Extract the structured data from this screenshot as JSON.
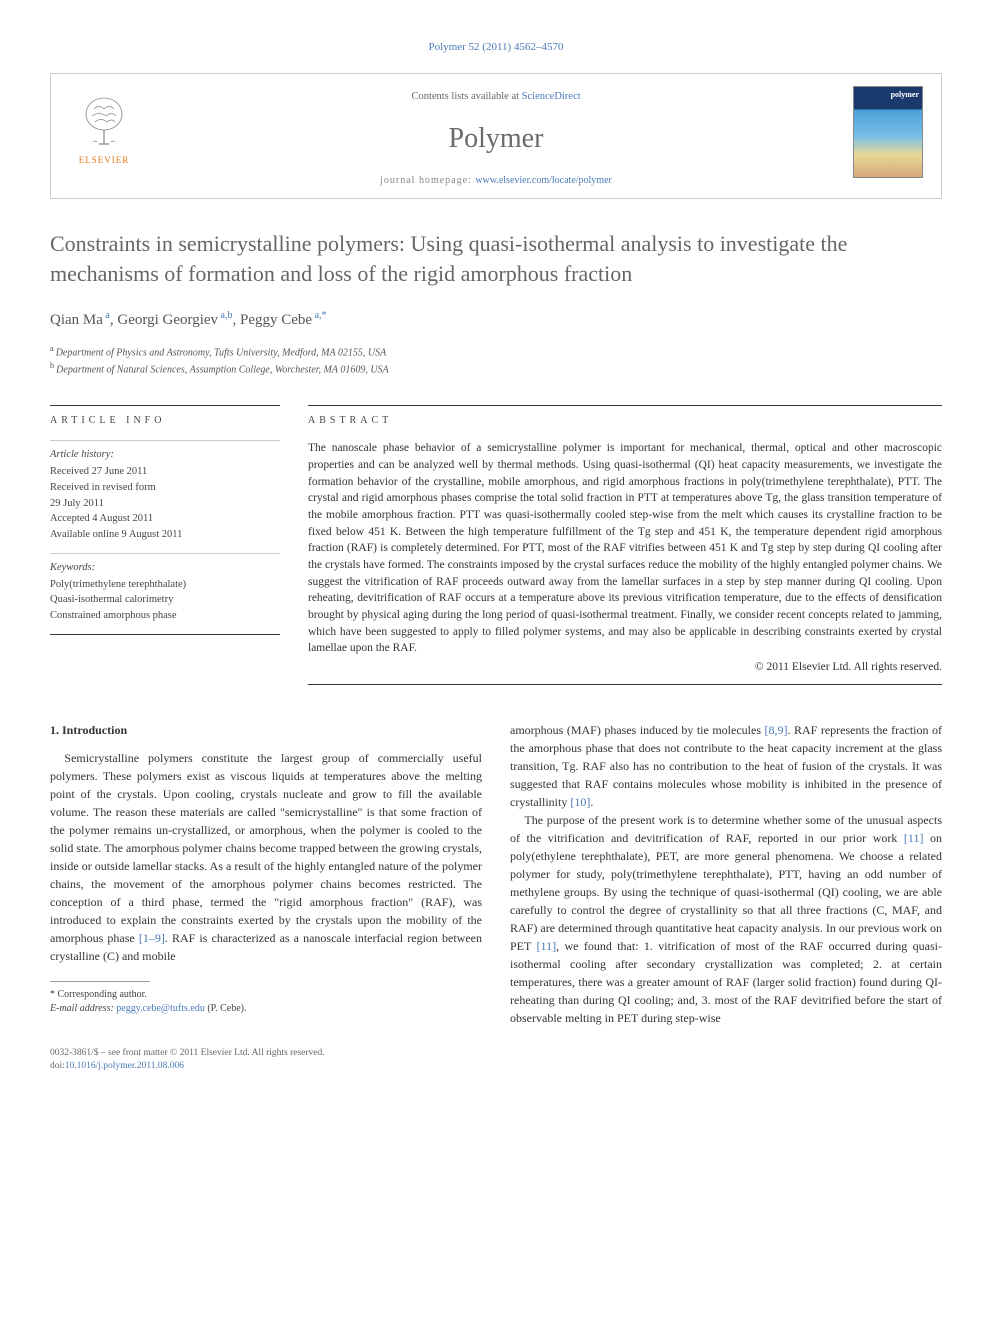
{
  "header": {
    "citation_prefix": "Polymer 52 (2011) 4562",
    "citation_link": "–4570"
  },
  "masthead": {
    "publisher": "ELSEVIER",
    "contents_prefix": "Contents lists available at ",
    "contents_link": "ScienceDirect",
    "journal": "Polymer",
    "homepage_prefix": "journal homepage: ",
    "homepage_url": "www.elsevier.com/locate/polymer",
    "cover_label": "polymer"
  },
  "article": {
    "title": "Constraints in semicrystalline polymers: Using quasi-isothermal analysis to investigate the mechanisms of formation and loss of the rigid amorphous fraction",
    "authors_html": "Qian Ma<sup> a</sup>, Georgi Georgiev<sup> a,b</sup>, Peggy Cebe<sup> a,*</sup>",
    "affiliations": [
      {
        "sup": "a",
        "text": "Department of Physics and Astronomy, Tufts University, Medford, MA 02155, USA"
      },
      {
        "sup": "b",
        "text": "Department of Natural Sciences, Assumption College, Worchester, MA 01609, USA"
      }
    ]
  },
  "info": {
    "label": "ARTICLE INFO",
    "history_label": "Article history:",
    "history": [
      "Received 27 June 2011",
      "Received in revised form",
      "29 July 2011",
      "Accepted 4 August 2011",
      "Available online 9 August 2011"
    ],
    "keywords_label": "Keywords:",
    "keywords": [
      "Poly(trimethylene terephthalate)",
      "Quasi-isothermal calorimetry",
      "Constrained amorphous phase"
    ]
  },
  "abstract": {
    "label": "ABSTRACT",
    "text": "The nanoscale phase behavior of a semicrystalline polymer is important for mechanical, thermal, optical and other macroscopic properties and can be analyzed well by thermal methods. Using quasi-isothermal (QI) heat capacity measurements, we investigate the formation behavior of the crystalline, mobile amorphous, and rigid amorphous fractions in poly(trimethylene terephthalate), PTT. The crystal and rigid amorphous phases comprise the total solid fraction in PTT at temperatures above Tg, the glass transition temperature of the mobile amorphous fraction. PTT was quasi-isothermally cooled step-wise from the melt which causes its crystalline fraction to be fixed below 451 K. Between the high temperature fulfillment of the Tg step and 451 K, the temperature dependent rigid amorphous fraction (RAF) is completely determined. For PTT, most of the RAF vitrifies between 451 K and Tg step by step during QI cooling after the crystals have formed. The constraints imposed by the crystal surfaces reduce the mobility of the highly entangled polymer chains. We suggest the vitrification of RAF proceeds outward away from the lamellar surfaces in a step by step manner during QI cooling. Upon reheating, devitrification of RAF occurs at a temperature above its previous vitrification temperature, due to the effects of densification brought by physical aging during the long period of quasi-isothermal treatment. Finally, we consider recent concepts related to jamming, which have been suggested to apply to filled polymer systems, and may also be applicable in describing constraints exerted by crystal lamellae upon the RAF.",
    "copyright": "© 2011 Elsevier Ltd. All rights reserved."
  },
  "body": {
    "section_heading": "1. Introduction",
    "col1_p1": "Semicrystalline polymers constitute the largest group of commercially useful polymers. These polymers exist as viscous liquids at temperatures above the melting point of the crystals. Upon cooling, crystals nucleate and grow to fill the available volume. The reason these materials are called \"semicrystalline\" is that some fraction of the polymer remains un-crystallized, or amorphous, when the polymer is cooled to the solid state. The amorphous polymer chains become trapped between the growing crystals, inside or outside lamellar stacks. As a result of the highly entangled nature of the polymer chains, the movement of the amorphous polymer chains becomes restricted. The conception of a third phase, termed the \"rigid amorphous fraction\" (RAF), was introduced to explain the constraints exerted by the crystals upon the mobility of the amorphous phase ",
    "col1_ref1": "[1–9]",
    "col1_p1_tail": ". RAF is characterized as a nanoscale interfacial region between crystalline (C) and mobile",
    "col2_p1_head": "amorphous (MAF) phases induced by tie molecules ",
    "col2_ref1": "[8,9]",
    "col2_p1_mid": ". RAF represents the fraction of the amorphous phase that does not contribute to the heat capacity increment at the glass transition, Tg. RAF also has no contribution to the heat of fusion of the crystals. It was suggested that RAF contains molecules whose mobility is inhibited in the presence of crystallinity ",
    "col2_ref2": "[10]",
    "col2_p1_tail": ".",
    "col2_p2_head": "The purpose of the present work is to determine whether some of the unusual aspects of the vitrification and devitrification of RAF, reported in our prior work ",
    "col2_ref3": "[11]",
    "col2_p2_mid": " on poly(ethylene terephthalate), PET, are more general phenomena. We choose a related polymer for study, poly(trimethylene terephthalate), PTT, having an odd number of methylene groups. By using the technique of quasi-isothermal (QI) cooling, we are able carefully to control the degree of crystallinity so that all three fractions (C, MAF, and RAF) are determined through quantitative heat capacity analysis. In our previous work on PET ",
    "col2_ref4": "[11]",
    "col2_p2_tail": ", we found that: 1. vitrification of most of the RAF occurred during quasi-isothermal cooling after secondary crystallization was completed; 2. at certain temperatures, there was a greater amount of RAF (larger solid fraction) found during QI-reheating than during QI cooling; and, 3. most of the RAF devitrified before the start of observable melting in PET during step-wise"
  },
  "footnotes": {
    "corresponding": "* Corresponding author.",
    "email_label": "E-mail address: ",
    "email": "peggy.cebe@tufts.edu",
    "email_suffix": " (P. Cebe)."
  },
  "footer": {
    "line1": "0032-3861/$ – see front matter © 2011 Elsevier Ltd. All rights reserved.",
    "doi_prefix": "doi:",
    "doi": "10.1016/j.polymer.2011.08.006"
  },
  "colors": {
    "link": "#4a7ab8",
    "publisher": "#e67817"
  }
}
